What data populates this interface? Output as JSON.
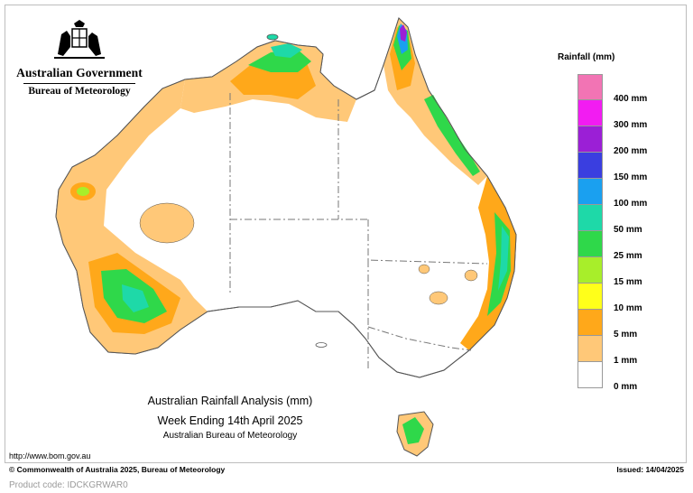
{
  "header": {
    "org_name": "Australian Government",
    "agency_name": "Bureau of Meteorology",
    "logo_icon": "coat-of-arms-icon"
  },
  "legend": {
    "title": "Rainfall (mm)",
    "bands": [
      {
        "label": "400 mm",
        "color": "#f274b4"
      },
      {
        "label": "300 mm",
        "color": "#f21cf2"
      },
      {
        "label": "200 mm",
        "color": "#9b1fd6"
      },
      {
        "label": "150 mm",
        "color": "#3a3ee0"
      },
      {
        "label": "100 mm",
        "color": "#1aa0f0"
      },
      {
        "label": "50 mm",
        "color": "#1ed9a8"
      },
      {
        "label": "25 mm",
        "color": "#2fd84a"
      },
      {
        "label": "15 mm",
        "color": "#a8ee2a"
      },
      {
        "label": "10 mm",
        "color": "#ffff1a"
      },
      {
        "label": "5 mm",
        "color": "#ffa81a"
      },
      {
        "label": "1 mm",
        "color": "#ffc878"
      },
      {
        "label": "0 mm",
        "color": "#ffffff"
      }
    ]
  },
  "caption": {
    "line1": "Australian Rainfall Analysis (mm)",
    "line2": "Week Ending 14th April 2025",
    "line3": "Australian Bureau of Meteorology"
  },
  "footer": {
    "url": "http://www.bom.gov.au",
    "copyright": "© Commonwealth of Australia 2025, Bureau of Meteorology",
    "issued": "Issued: 14/04/2025",
    "product_code": "Product code: IDCKGRWAR0"
  },
  "map": {
    "colors": {
      "land": "#ffffff",
      "coast": "#555555",
      "border": "#777777",
      "light_rain": "#ffc878",
      "moderate_rain": "#ffa81a",
      "heavy_rain": "#2fd84a",
      "very_heavy_rain": "#1ed9a8"
    }
  }
}
